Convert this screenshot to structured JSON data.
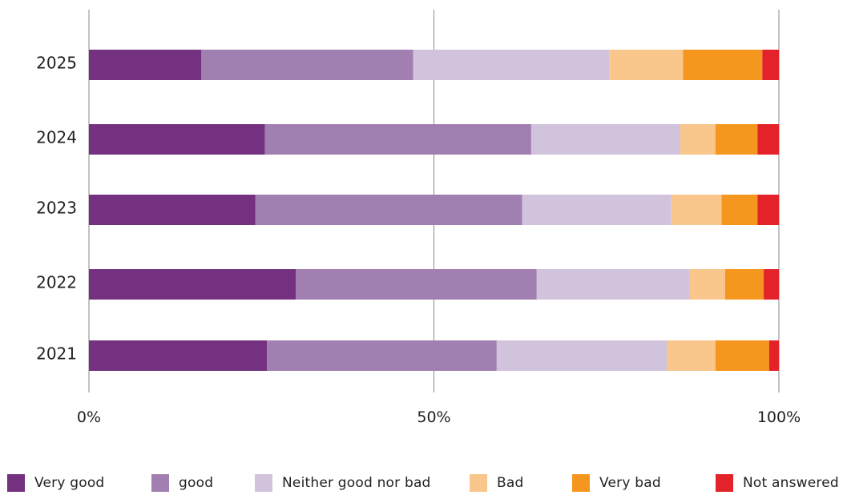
{
  "chart_data": {
    "type": "bar",
    "orientation": "horizontal",
    "stacked": true,
    "categories": [
      "2025",
      "2024",
      "2023",
      "2022",
      "2021"
    ],
    "xlim": [
      0,
      100
    ],
    "x_ticks": [
      {
        "value": 0,
        "label": "0%"
      },
      {
        "value": 50,
        "label": "50%"
      },
      {
        "value": 100,
        "label": "100%"
      }
    ],
    "grid": true,
    "legend_position": "bottom",
    "series": [
      {
        "name": "Very good",
        "color": "#74317f",
        "values": [
          16.3,
          25.5,
          24.1,
          30.0,
          25.8
        ]
      },
      {
        "name": "good",
        "color": "#a17fb0",
        "values": [
          30.7,
          38.6,
          38.7,
          34.9,
          33.3
        ]
      },
      {
        "name": "Neither good nor bad",
        "color": "#d1c3dc",
        "values": [
          28.4,
          21.6,
          21.6,
          22.2,
          24.7
        ]
      },
      {
        "name": "Bad",
        "color": "#f9c68c",
        "values": [
          10.7,
          5.1,
          7.3,
          5.1,
          7.0
        ]
      },
      {
        "name": "Very bad",
        "color": "#f5961e",
        "values": [
          11.5,
          6.1,
          5.2,
          5.6,
          7.8
        ]
      },
      {
        "name": "Not answered",
        "color": "#e3222a",
        "values": [
          2.4,
          3.1,
          3.1,
          2.2,
          1.4
        ]
      }
    ]
  }
}
